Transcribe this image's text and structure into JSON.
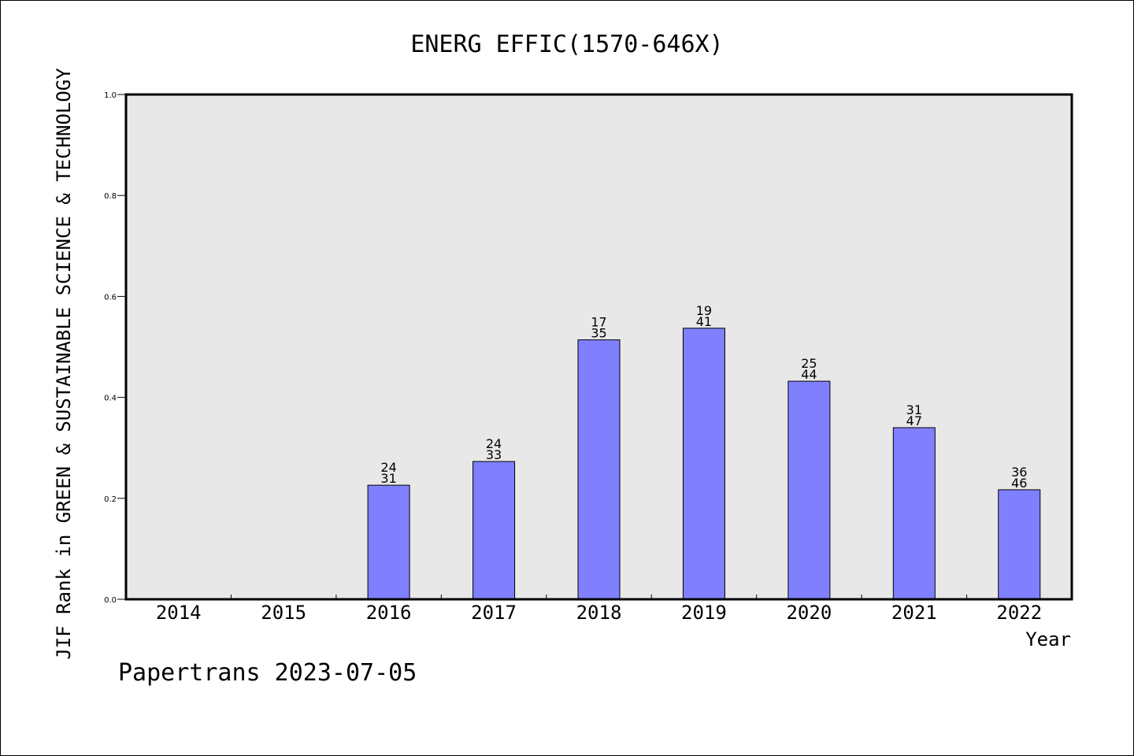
{
  "chart_data": {
    "type": "bar",
    "title": "ENERG EFFIC(1570-646X)",
    "ylabel": "JIF Rank in GREEN & SUSTAINABLE SCIENCE & TECHNOLOGY",
    "xlabel": "Year",
    "categories": [
      "2014",
      "2015",
      "2016",
      "2017",
      "2018",
      "2019",
      "2020",
      "2021",
      "2022"
    ],
    "values": [
      null,
      null,
      0.226,
      0.273,
      0.514,
      0.537,
      0.432,
      0.34,
      0.217
    ],
    "rank_labels": [
      {
        "rank": "",
        "total": ""
      },
      {
        "rank": "",
        "total": ""
      },
      {
        "rank": "24",
        "total": "31"
      },
      {
        "rank": "24",
        "total": "33"
      },
      {
        "rank": "17",
        "total": "35"
      },
      {
        "rank": "19",
        "total": "41"
      },
      {
        "rank": "25",
        "total": "44"
      },
      {
        "rank": "31",
        "total": "47"
      },
      {
        "rank": "36",
        "total": "46"
      }
    ],
    "yticks": [
      "0.0",
      "0.2",
      "0.4",
      "0.6",
      "0.8",
      "1.0"
    ],
    "ylim": [
      0,
      1
    ],
    "grid": false,
    "bar_color": "#8080ff",
    "plot_background": "#e8e8e8"
  },
  "footer": "Papertrans 2023-07-05"
}
